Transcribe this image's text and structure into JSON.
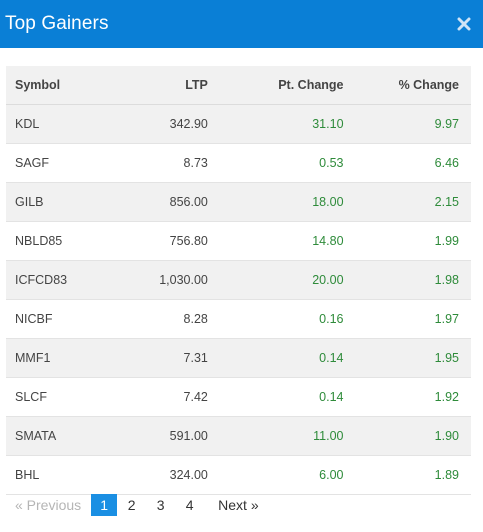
{
  "header": {
    "title": "Top Gainers",
    "close_icon": "close-icon"
  },
  "colors": {
    "header_bg": "#0a7fd6",
    "positive": "#2e8b3a",
    "active_page": "#1a8fe3"
  },
  "table": {
    "columns": [
      "Symbol",
      "LTP",
      "Pt. Change",
      "% Change"
    ],
    "rows": [
      {
        "symbol": "KDL",
        "ltp": "342.90",
        "pt_change": "31.10",
        "pct_change": "9.97"
      },
      {
        "symbol": "SAGF",
        "ltp": "8.73",
        "pt_change": "0.53",
        "pct_change": "6.46"
      },
      {
        "symbol": "GILB",
        "ltp": "856.00",
        "pt_change": "18.00",
        "pct_change": "2.15"
      },
      {
        "symbol": "NBLD85",
        "ltp": "756.80",
        "pt_change": "14.80",
        "pct_change": "1.99"
      },
      {
        "symbol": "ICFCD83",
        "ltp": "1,030.00",
        "pt_change": "20.00",
        "pct_change": "1.98"
      },
      {
        "symbol": "NICBF",
        "ltp": "8.28",
        "pt_change": "0.16",
        "pct_change": "1.97"
      },
      {
        "symbol": "MMF1",
        "ltp": "7.31",
        "pt_change": "0.14",
        "pct_change": "1.95"
      },
      {
        "symbol": "SLCF",
        "ltp": "7.42",
        "pt_change": "0.14",
        "pct_change": "1.92"
      },
      {
        "symbol": "SMATA",
        "ltp": "591.00",
        "pt_change": "11.00",
        "pct_change": "1.90"
      },
      {
        "symbol": "BHL",
        "ltp": "324.00",
        "pt_change": "6.00",
        "pct_change": "1.89"
      }
    ]
  },
  "pagination": {
    "previous": "« Previous",
    "next": "Next »",
    "pages": [
      "1",
      "2",
      "3",
      "4"
    ],
    "active_page": "1"
  }
}
